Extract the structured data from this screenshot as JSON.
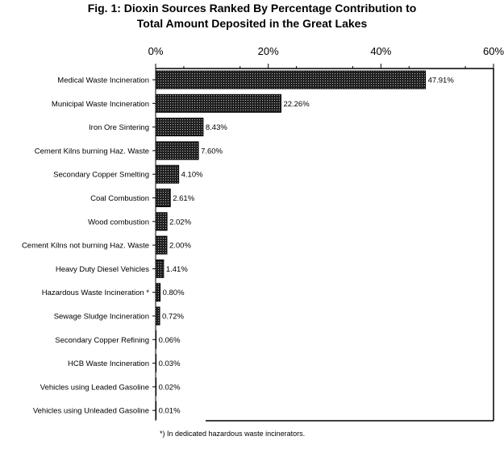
{
  "title_line1": "Fig. 1:  Dioxin Sources Ranked By Percentage Contribution to",
  "title_line2": "Total Amount Deposited in the Great Lakes",
  "footnote": "*) In dedicated hazardous waste incinerators.",
  "chart_data": {
    "type": "bar",
    "orientation": "horizontal",
    "title": "Fig. 1:  Dioxin Sources Ranked By Percentage Contribution to Total Amount Deposited in the Great Lakes",
    "categories": [
      "Medical Waste Incineration",
      "Municipal Waste Incineration",
      "Iron Ore Sintering",
      "Cement Kilns burning Haz. Waste",
      "Secondary Copper Smelting",
      "Coal Combustion",
      "Wood combustion",
      "Cement Kilns not burning Haz. Waste",
      "Heavy Duty Diesel Vehicles",
      "Hazardous Waste Incineration *",
      "Sewage Sludge Incineration",
      "Secondary Copper Refining",
      "HCB Waste Incineration",
      "Vehicles using Leaded Gasoline",
      "Vehicles using Unleaded Gasoline"
    ],
    "values": [
      47.91,
      22.26,
      8.43,
      7.6,
      4.1,
      2.61,
      2.02,
      2.0,
      1.41,
      0.8,
      0.72,
      0.06,
      0.03,
      0.02,
      0.01
    ],
    "data_labels": [
      "47.91%",
      "22.26%",
      "8.43%",
      "7.60%",
      "4.10%",
      "2.61%",
      "2.02%",
      "2.00%",
      "1.41%",
      "0.80%",
      "0.72%",
      "0.06%",
      "0.03%",
      "0.02%",
      "0.01%"
    ],
    "xlim": [
      0,
      60
    ],
    "ticks": [
      0,
      20,
      40,
      60
    ],
    "tick_labels": [
      "0%",
      "20%",
      "40%",
      "60%"
    ],
    "axis_position": "top",
    "grid": false,
    "bar_fill": "#444444"
  }
}
